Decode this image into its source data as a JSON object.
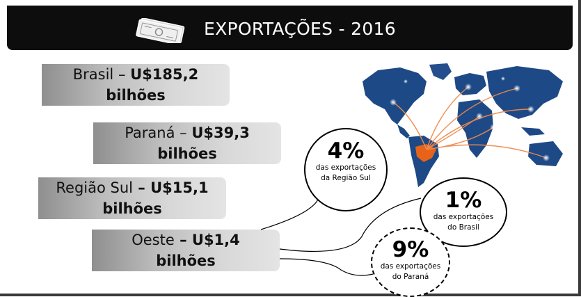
{
  "header": {
    "title": "EXPORTAÇÕES - 2016"
  },
  "stats": [
    {
      "region": "Brasil",
      "sep": " – ",
      "value": "U$185,2",
      "unit": "bilhões"
    },
    {
      "region": "Paraná",
      "sep": " – ",
      "value": "U$39,3",
      "unit": "bilhões"
    },
    {
      "region": "Região Sul",
      "sep": " – ",
      "value": "U$15,1",
      "unit": "bilhões"
    },
    {
      "region": "Oeste",
      "sep": " – ",
      "value": "U$1,4",
      "unit": "bilhões"
    }
  ],
  "bubbles": [
    {
      "pct": "4%",
      "line1": "das exportações",
      "line2": "da Região Sul"
    },
    {
      "pct": "1%",
      "line1": "das exportações",
      "line2": "do Brasil"
    },
    {
      "pct": "9%",
      "line1": "das exportações",
      "line2": "do Paraná"
    }
  ],
  "colors": {
    "header_bg": "#0d0d0d",
    "map_blue": "#1d4a86",
    "highlight_orange": "#e8631a"
  }
}
